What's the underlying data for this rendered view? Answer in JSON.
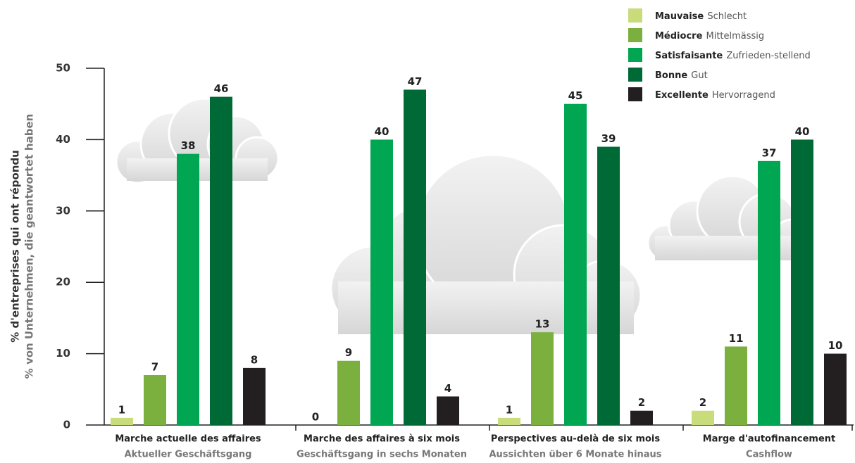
{
  "chart_data": {
    "type": "bar",
    "ylabel": [
      "% d'entreprises qui ont répondu",
      "% von Unternehmen, die geantwortet haben"
    ],
    "categories": [
      "Marche actuelle des affaires",
      "Marche des affaires à six mois",
      "Perspectives au-delà de six mois",
      "Marge d'autofinancement"
    ],
    "categories_de": [
      "Aktueller Geschäftsgang",
      "Geschäftsgang in sechs Monaten",
      "Aussichten über 6 Monate hinaus",
      "Cashflow"
    ],
    "series": [
      {
        "name": "Mauvaise",
        "name_de": "Schlecht",
        "color": "#c8dc7c",
        "values": [
          1,
          0,
          1,
          2
        ]
      },
      {
        "name": "Médiocre",
        "name_de": "Mittelmässig",
        "color": "#7bb03e",
        "values": [
          7,
          9,
          13,
          11
        ]
      },
      {
        "name": "Satisfaisante",
        "name_de": "Zufrieden-stellend",
        "color": "#00a651",
        "values": [
          38,
          40,
          45,
          37
        ]
      },
      {
        "name": "Bonne",
        "name_de": "Gut",
        "color": "#006a36",
        "values": [
          46,
          47,
          39,
          40
        ]
      },
      {
        "name": "Excellente",
        "name_de": "Hervorragend",
        "color": "#231f20",
        "values": [
          8,
          4,
          2,
          10
        ]
      }
    ],
    "ylim": [
      0,
      50
    ],
    "yticks": [
      0,
      10,
      20,
      30,
      40,
      50
    ],
    "grid": false,
    "legend": "top-right"
  }
}
